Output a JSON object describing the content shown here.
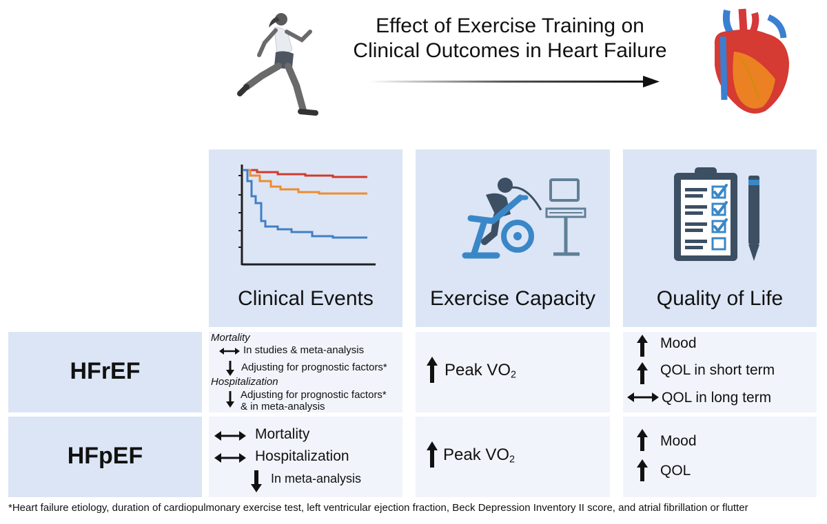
{
  "title": {
    "line1": "Effect of Exercise Training on",
    "line2": "Clinical Outcomes in Heart Failure"
  },
  "columns": {
    "clinical_events": "Clinical Events",
    "exercise_capacity": "Exercise Capacity",
    "quality_of_life": "Quality of Life"
  },
  "rows": {
    "hfref": "HFrEF",
    "hfpef": "HFpEF"
  },
  "hfref": {
    "clinical_events": {
      "mortality_heading": "Mortality",
      "mortality_line1": "In studies & meta-analysis",
      "mortality_line2": "Adjusting for prognostic factors*",
      "hosp_heading": "Hospitalization",
      "hosp_line1": "Adjusting for prognostic factors*",
      "hosp_line2": "& in meta-analysis"
    },
    "exercise_capacity": {
      "label": "Peak VO",
      "sub": "2"
    },
    "quality_of_life": {
      "item1": "Mood",
      "item2": "QOL in short term",
      "item3": "QOL in long term"
    }
  },
  "hfpef": {
    "clinical_events": {
      "item1": "Mortality",
      "item2": "Hospitalization",
      "item3": "In meta-analysis"
    },
    "exercise_capacity": {
      "label": "Peak VO",
      "sub": "2"
    },
    "quality_of_life": {
      "item1": "Mood",
      "item2": "QOL"
    }
  },
  "footnote": "*Heart failure etiology, duration of cardiopulmonary exercise test, left ventricular ejection fraction, Beck Depression Inventory II score, and atrial fibrillation or flutter",
  "icons": [
    "runner-icon",
    "heart-icon",
    "survival-curve-icon",
    "exercise-bike-icon",
    "clipboard-checklist-icon"
  ],
  "colors": {
    "header_bg": "#dce5f5",
    "cell_bg": "#f1f4fa",
    "icon_blue": "#3a87c8",
    "icon_dark": "#3c4f63",
    "curve_red": "#d03a2c",
    "curve_orange": "#ee8c2f",
    "curve_blue": "#3f7fc5"
  }
}
